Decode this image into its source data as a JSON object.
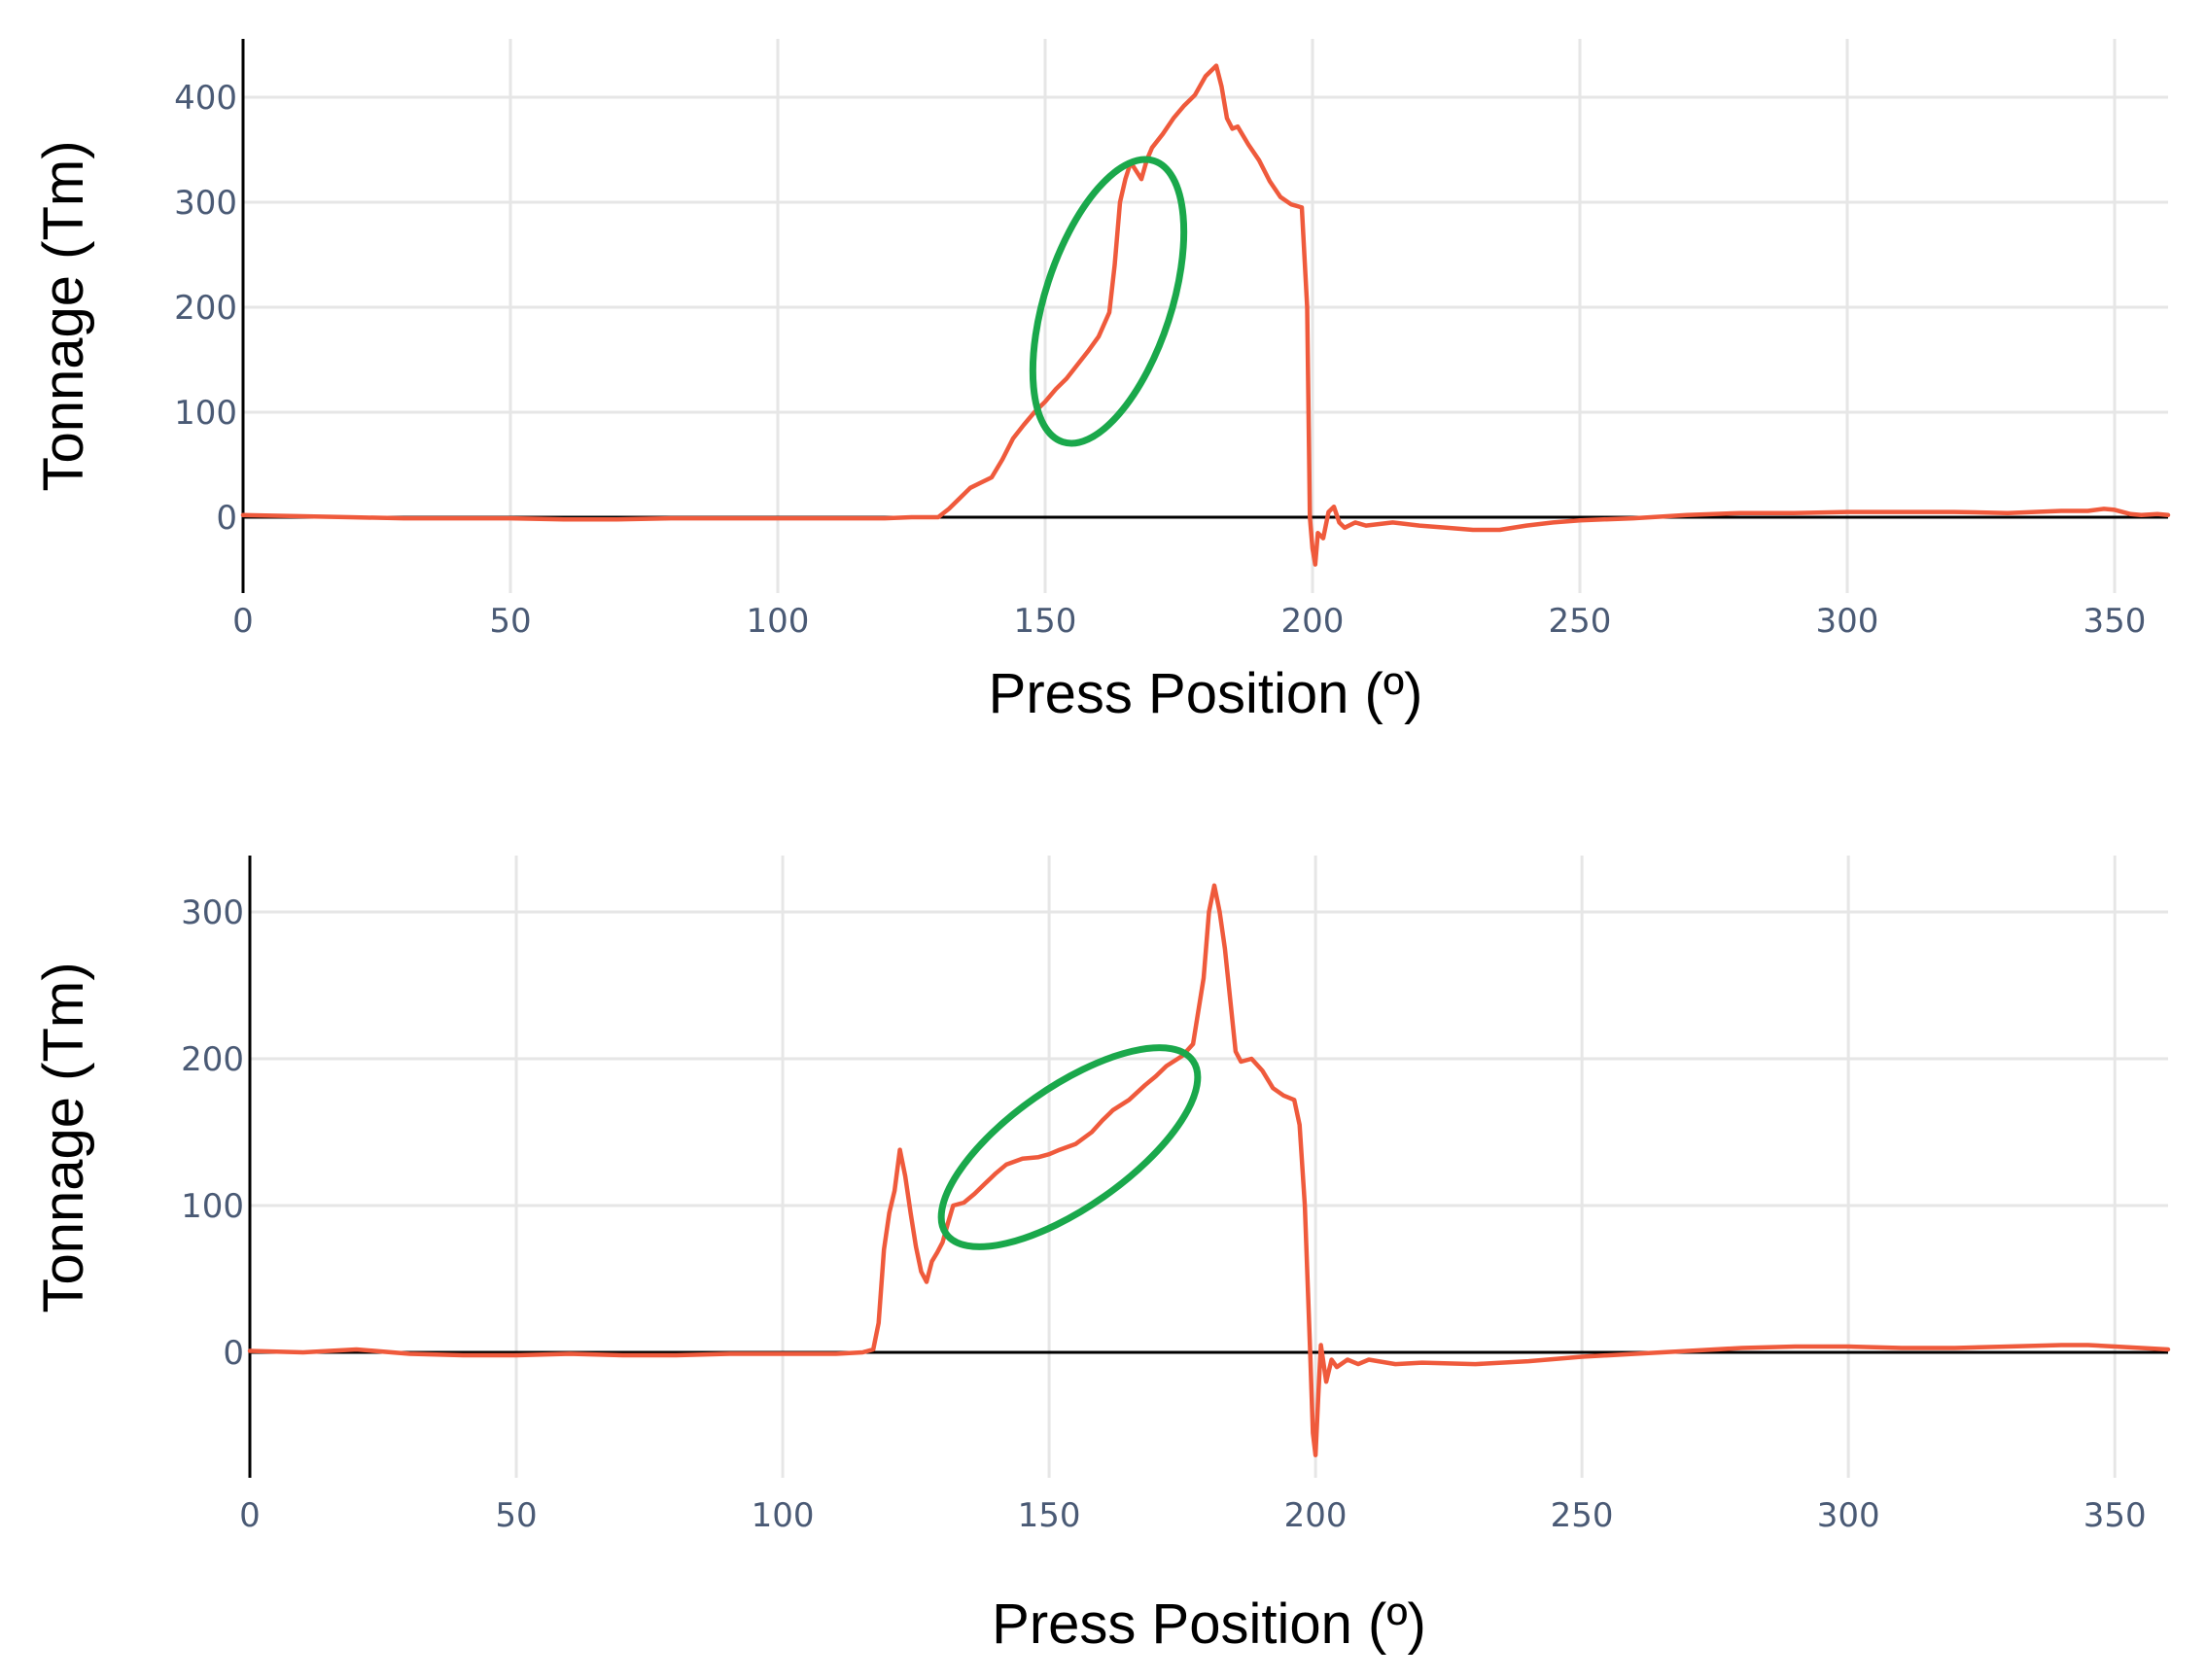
{
  "colors": {
    "series": "#ef5a3c",
    "highlight": "#1aa84b",
    "grid": "#e6e6e6",
    "tick_text": "#4a5a75"
  },
  "chart_data": [
    {
      "type": "line",
      "xlabel": "Press Position (º)",
      "ylabel": "Tonnage (Tm)",
      "xlim": [
        0,
        360
      ],
      "ylim": [
        -75,
        460
      ],
      "xticks": [
        0,
        50,
        100,
        150,
        200,
        250,
        300,
        350
      ],
      "yticks": [
        0,
        100,
        200,
        300,
        400
      ],
      "grid": true,
      "series": [
        {
          "x": [
            0,
            10,
            20,
            30,
            40,
            50,
            60,
            70,
            80,
            90,
            100,
            110,
            120,
            125,
            130,
            132,
            134,
            136,
            138,
            140,
            142,
            144,
            146,
            148,
            150,
            152,
            154,
            156,
            158,
            160,
            162,
            163,
            164,
            165,
            166,
            167,
            168,
            169,
            170,
            172,
            174,
            176,
            178,
            180,
            182,
            183,
            184,
            185,
            186,
            188,
            190,
            192,
            194,
            196,
            198,
            199,
            199.5,
            200,
            200.5,
            201,
            202,
            203,
            204,
            205,
            206,
            208,
            210,
            215,
            220,
            225,
            230,
            235,
            240,
            245,
            250,
            260,
            270,
            280,
            290,
            300,
            310,
            320,
            330,
            340,
            345,
            348,
            350,
            353,
            355,
            358,
            360
          ],
          "y": [
            2,
            1,
            0,
            -1,
            -1,
            -1,
            -2,
            -2,
            -1,
            -1,
            -1,
            -1,
            -1,
            0,
            0,
            8,
            18,
            28,
            33,
            38,
            55,
            75,
            88,
            100,
            110,
            122,
            132,
            145,
            158,
            172,
            195,
            240,
            300,
            322,
            338,
            330,
            322,
            340,
            352,
            365,
            380,
            392,
            402,
            420,
            430,
            410,
            380,
            370,
            372,
            355,
            340,
            320,
            305,
            298,
            295,
            200,
            0,
            -30,
            -45,
            -15,
            -20,
            5,
            10,
            -5,
            -10,
            -5,
            -8,
            -5,
            -8,
            -10,
            -12,
            -12,
            -8,
            -5,
            -3,
            -1,
            2,
            4,
            4,
            5,
            5,
            5,
            4,
            6,
            6,
            8,
            7,
            3,
            2,
            3,
            2
          ]
        }
      ]
    },
    {
      "type": "line",
      "xlabel": "Press Position (º)",
      "ylabel": "Tonnage (Tm)",
      "xlim": [
        0,
        360
      ],
      "ylim": [
        -90,
        335
      ],
      "xticks": [
        0,
        50,
        100,
        150,
        200,
        250,
        300,
        350
      ],
      "yticks": [
        0,
        100,
        200,
        300
      ],
      "grid": true,
      "series": [
        {
          "x": [
            0,
            10,
            20,
            30,
            40,
            50,
            60,
            70,
            80,
            90,
            100,
            110,
            115,
            117,
            118,
            119,
            120,
            121,
            122,
            123,
            124,
            125,
            126,
            127,
            128,
            129,
            130,
            131,
            132,
            134,
            136,
            138,
            140,
            142,
            145,
            148,
            150,
            152,
            155,
            158,
            160,
            162,
            165,
            168,
            170,
            172,
            175,
            177,
            179,
            180,
            181,
            182,
            183,
            184,
            185,
            186,
            188,
            190,
            192,
            194,
            196,
            197,
            198,
            199,
            199.5,
            200,
            200.5,
            201,
            202,
            203,
            204,
            206,
            208,
            210,
            215,
            220,
            230,
            240,
            250,
            260,
            270,
            280,
            290,
            300,
            310,
            320,
            330,
            340,
            345,
            350,
            355,
            360
          ],
          "y": [
            1,
            0,
            2,
            -1,
            -2,
            -2,
            -1,
            -2,
            -2,
            -1,
            -1,
            -1,
            0,
            2,
            20,
            70,
            95,
            110,
            138,
            120,
            95,
            72,
            55,
            48,
            62,
            68,
            75,
            88,
            100,
            102,
            108,
            115,
            122,
            128,
            132,
            133,
            135,
            138,
            142,
            150,
            158,
            165,
            172,
            182,
            188,
            195,
            202,
            210,
            255,
            300,
            318,
            300,
            275,
            240,
            205,
            198,
            200,
            192,
            180,
            175,
            172,
            155,
            100,
            0,
            -55,
            -70,
            -30,
            5,
            -20,
            -5,
            -10,
            -5,
            -8,
            -5,
            -8,
            -7,
            -8,
            -6,
            -3,
            -1,
            1,
            3,
            4,
            4,
            3,
            3,
            4,
            5,
            5,
            4,
            3,
            2
          ]
        }
      ]
    }
  ]
}
